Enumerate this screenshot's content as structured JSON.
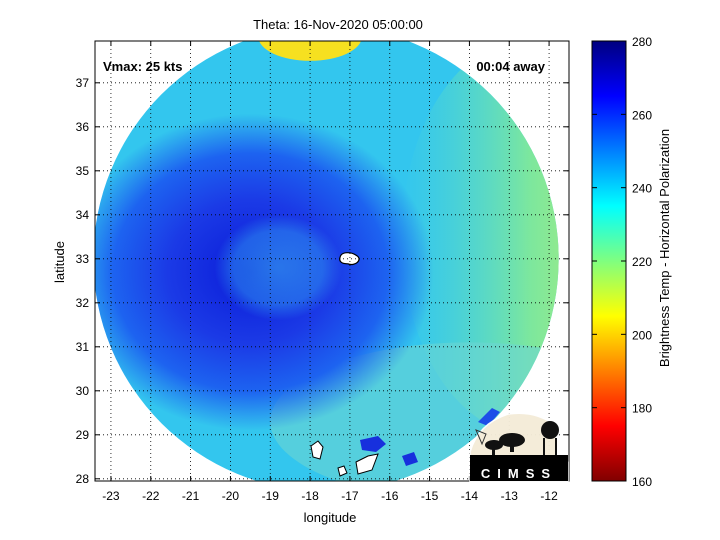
{
  "title": "Theta: 16-Nov-2020 05:00:00",
  "annotations": {
    "vmax": "Vmax: 25 kts",
    "away": "00:04 away"
  },
  "axes": {
    "xlabel": "longitude",
    "ylabel": "latitude",
    "xlim": [
      -23.4,
      -11.5
    ],
    "ylim": [
      27.95,
      37.95
    ],
    "xticks": [
      -23,
      -22,
      -21,
      -20,
      -19,
      -18,
      -17,
      -16,
      -15,
      -14,
      -13,
      -12
    ],
    "yticks": [
      28,
      29,
      30,
      31,
      32,
      33,
      34,
      35,
      36,
      37
    ],
    "grid": true
  },
  "colorbar": {
    "label": "Brightness Temp - Horizontal Polarization",
    "min": 160,
    "max": 280,
    "ticks": [
      160,
      180,
      200,
      220,
      240,
      260,
      280
    ]
  },
  "chart_data": {
    "type": "heatmap",
    "title": "Theta: 16-Nov-2020 05:00:00",
    "xlabel": "longitude",
    "ylabel": "latitude",
    "variable": "Brightness Temp - Horizontal Polarization",
    "value_range": [
      160,
      280
    ],
    "storm": {
      "name": "Theta",
      "vmax_kts": 25,
      "center_lon": -17.0,
      "center_lat": 33.0
    },
    "coverage": {
      "center_lon": -17.6,
      "center_lat": 33.0,
      "radius_deg": 5.9
    },
    "features": [
      {
        "name": "cold core",
        "lon": -19.5,
        "lat": 32.7,
        "value": 262
      },
      {
        "name": "warm cap",
        "lon": -18.0,
        "lat": 37.6,
        "value": 205
      },
      {
        "name": "warm east band",
        "lon": -12.5,
        "lat": 33.5,
        "value": 218
      },
      {
        "name": "background",
        "lon": -14.0,
        "lat": 30.5,
        "value": 236
      }
    ]
  },
  "logo": {
    "text": "CIMSS"
  }
}
